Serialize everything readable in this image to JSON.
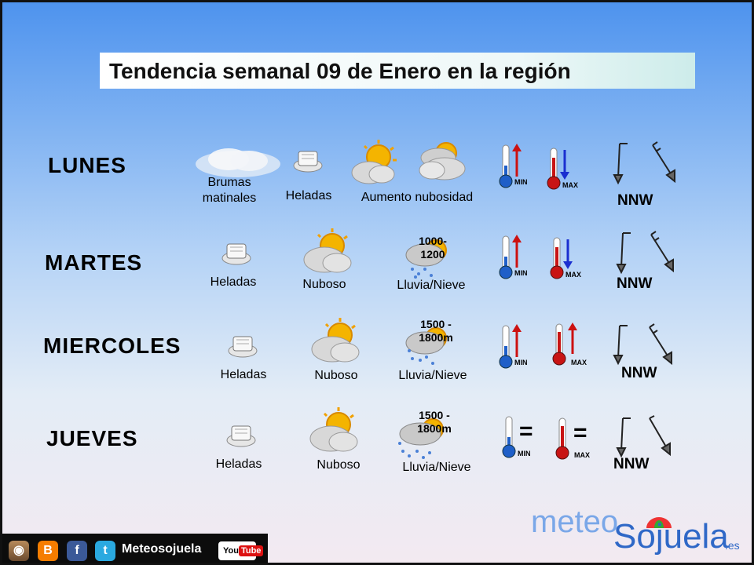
{
  "title": "Tendencia semanal 09 de Enero en la región",
  "thermo": {
    "min_label": "MIN",
    "max_label": "MAX"
  },
  "days": [
    {
      "name": "LUNES",
      "labels": [
        "Brumas\nmatinales",
        "Heladas",
        "Aumento nubosidad"
      ],
      "wind": "NNW",
      "min_trend": "up",
      "max_trend": "down"
    },
    {
      "name": "MARTES",
      "labels": [
        "Heladas",
        "Nuboso",
        "Lluvia/Nieve"
      ],
      "snow_level": "1000-\n1200",
      "wind": "NNW",
      "min_trend": "up",
      "max_trend": "down"
    },
    {
      "name": "MIERCOLES",
      "labels": [
        "Heladas",
        "Nuboso",
        "Lluvia/Nieve"
      ],
      "snow_level": "1500 -\n1800m",
      "wind": "NNW",
      "min_trend": "up",
      "max_trend": "up"
    },
    {
      "name": "JUEVES",
      "labels": [
        "Heladas",
        "Nuboso",
        "Lluvia/Nieve"
      ],
      "snow_level": "1500 -\n1800m",
      "wind": "NNW",
      "min_trend": "equal",
      "max_trend": "equal",
      "equal_sign": "="
    }
  ],
  "social": {
    "handle": "Meteosojuela",
    "youtube": "YouTube",
    "youtube_you": "You",
    "youtube_tube": "Tube"
  },
  "brand": {
    "meteo": "meteo",
    "sojuela": "Sojuela",
    "tld": ".es"
  },
  "colors": {
    "cloud": "#dcdcdc",
    "sun": "#f4b400",
    "arrow_up": "#cc1111",
    "arrow_down": "#1a2fd0",
    "therm_min": "#1f5fc8",
    "therm_max": "#c81414"
  }
}
